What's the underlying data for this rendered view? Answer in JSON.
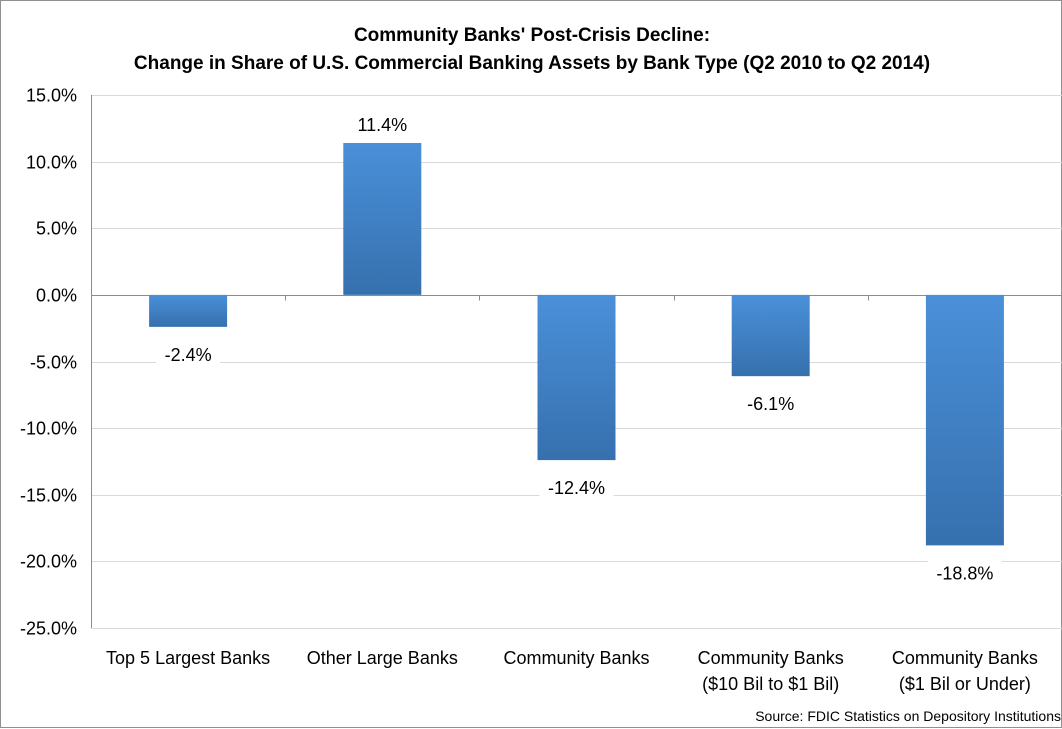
{
  "chart_data": {
    "type": "bar",
    "title": "Community Banks' Post-Crisis Decline:",
    "subtitle": "Change in Share of U.S. Commercial Banking Assets by Bank Type (Q2 2010 to Q2 2014)",
    "xlabel": "",
    "ylabel": "",
    "categories": [
      [
        "Top 5 Largest Banks"
      ],
      [
        "Other Large Banks"
      ],
      [
        "Community Banks"
      ],
      [
        "Community Banks",
        "($10 Bil to $1 Bil)"
      ],
      [
        "Community Banks",
        "($1 Bil or Under)"
      ]
    ],
    "values": [
      -2.4,
      11.4,
      -12.4,
      -6.1,
      -18.8
    ],
    "data_labels": [
      "-2.4%",
      "11.4%",
      "-12.4%",
      "-6.1%",
      "-18.8%"
    ],
    "ylim": [
      -25,
      15
    ],
    "yticks": [
      15,
      10,
      5,
      0,
      -5,
      -10,
      -15,
      -20,
      -25
    ],
    "ytick_labels": [
      "15.0%",
      "10.0%",
      "5.0%",
      "0.0%",
      "-5.0%",
      "-10.0%",
      "-15.0%",
      "-20.0%",
      "-25.0%"
    ],
    "grid": true,
    "legend": "none",
    "bar_color": "#3f7fc6",
    "bar_color_light": "#4a90d9",
    "bar_color_dark": "#3670ae",
    "source": "Source: FDIC Statistics on Depository Institutions"
  }
}
